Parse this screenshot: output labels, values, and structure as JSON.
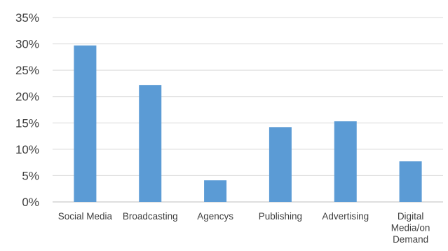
{
  "chart_data": {
    "type": "bar",
    "title": "",
    "xlabel": "",
    "ylabel": "",
    "categories": [
      [
        "Social Media"
      ],
      [
        "Broadcasting"
      ],
      [
        "Agencys"
      ],
      [
        "Publishing"
      ],
      [
        "Advertising"
      ],
      [
        "Digital",
        "Media/on",
        "Demand"
      ]
    ],
    "values": [
      29.7,
      22.2,
      4.1,
      14.2,
      15.3,
      7.7
    ],
    "yticks": [
      "0%",
      "5%",
      "10%",
      "15%",
      "20%",
      "25%",
      "30%",
      "35%"
    ],
    "ylim": [
      0,
      35
    ],
    "grid": true,
    "legend": "none",
    "bar_color": "#5b9bd5"
  }
}
